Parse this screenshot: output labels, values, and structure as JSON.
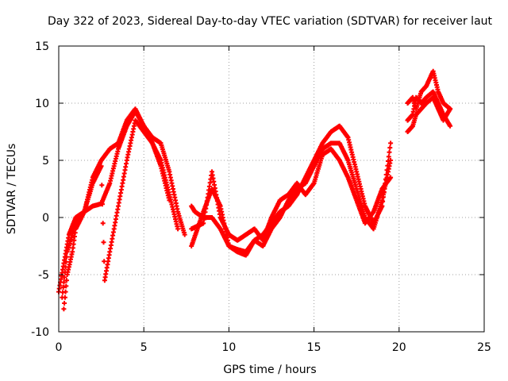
{
  "chart_data": {
    "type": "scatter",
    "title": "Day 322 of 2023, Sidereal Day-to-day VTEC variation (SDTVAR) for receiver laut",
    "xlabel": "GPS time / hours",
    "ylabel": "SDTVAR / TECUs",
    "xlim": [
      0,
      25
    ],
    "ylim": [
      -10,
      15
    ],
    "xticks": [
      "0",
      "5",
      "10",
      "15",
      "20",
      "25"
    ],
    "yticks": [
      "-10",
      "-5",
      "0",
      "5",
      "10",
      "15"
    ],
    "grid": true,
    "marker": "+",
    "color": "#ff0000",
    "series": [
      {
        "name": "trace-1",
        "x": [
          0.0,
          0.3,
          0.6,
          1.0,
          1.5,
          2.0,
          2.5,
          3.0,
          3.5,
          4.0,
          4.5,
          5.0,
          5.5,
          6.0,
          6.5,
          7.0,
          7.4
        ],
        "y": [
          -6.5,
          -4.0,
          -1.5,
          0.0,
          0.5,
          1.0,
          1.2,
          3.0,
          6.0,
          8.0,
          9.3,
          8.0,
          7.0,
          6.5,
          4.0,
          0.5,
          -1.5
        ]
      },
      {
        "name": "trace-2",
        "x": [
          0.3,
          0.5,
          0.8,
          1.0,
          1.5,
          2.0,
          2.5,
          3.0,
          3.5,
          4.0,
          4.5,
          5.0,
          5.5,
          6.0,
          6.5,
          7.0
        ],
        "y": [
          -8.0,
          -5.0,
          -3.0,
          -1.0,
          0.5,
          3.5,
          5.0,
          6.0,
          6.5,
          8.5,
          9.5,
          8.0,
          6.5,
          5.0,
          2.0,
          -1.0
        ]
      },
      {
        "name": "trace-3",
        "x": [
          0.2,
          0.5,
          1.0,
          1.5,
          2.0,
          2.5,
          2.7,
          3.0,
          3.5,
          4.0,
          4.5,
          5.0,
          5.5,
          6.0,
          6.5
        ],
        "y": [
          -7.0,
          -3.0,
          -0.5,
          0.5,
          3.0,
          4.5,
          -5.5,
          -3.0,
          1.0,
          5.0,
          8.5,
          7.5,
          6.5,
          4.5,
          1.5
        ]
      },
      {
        "name": "trace-4",
        "x": [
          7.8,
          8.0,
          8.5,
          9.0,
          9.5,
          10.0,
          10.5,
          11.0,
          11.5,
          12.0,
          12.5,
          13.0,
          13.5,
          14.0,
          14.5,
          15.0,
          15.5,
          16.0,
          16.5,
          17.0,
          17.5,
          18.0,
          18.5,
          19.0,
          19.5
        ],
        "y": [
          1.0,
          0.5,
          0.0,
          0.0,
          -1.0,
          -2.5,
          -2.8,
          -3.0,
          -2.0,
          -1.5,
          -0.5,
          0.5,
          1.0,
          2.0,
          3.5,
          5.0,
          6.5,
          7.5,
          8.0,
          7.0,
          4.0,
          1.0,
          -0.5,
          1.0,
          6.5
        ]
      },
      {
        "name": "trace-5",
        "x": [
          7.8,
          8.5,
          9.0,
          9.5,
          10.0,
          10.5,
          11.0,
          11.5,
          12.0,
          12.5,
          13.0,
          13.5,
          14.0,
          14.5,
          15.0,
          15.5,
          16.0,
          16.5,
          17.0,
          17.5,
          18.0,
          18.5,
          19.0,
          19.5
        ],
        "y": [
          -2.5,
          0.5,
          2.5,
          1.0,
          -2.5,
          -3.0,
          -3.3,
          -2.0,
          -2.5,
          -1.0,
          0.0,
          1.5,
          2.5,
          3.0,
          4.5,
          6.0,
          6.5,
          6.5,
          5.0,
          2.5,
          0.0,
          -1.0,
          1.5,
          5.0
        ]
      },
      {
        "name": "trace-6",
        "x": [
          7.8,
          8.5,
          9.0,
          9.5,
          10.0,
          10.5,
          11.0,
          11.5,
          12.0,
          12.5,
          13.0,
          13.5,
          14.0,
          14.5,
          15.0,
          15.5,
          16.0,
          16.5,
          17.0,
          17.5,
          18.0,
          18.5,
          19.0,
          19.5
        ],
        "y": [
          -1.0,
          -0.5,
          4.0,
          0.0,
          -1.5,
          -2.0,
          -1.5,
          -1.0,
          -2.0,
          0.0,
          1.5,
          2.0,
          3.0,
          2.0,
          3.0,
          5.5,
          6.0,
          5.0,
          3.5,
          1.5,
          -0.5,
          0.5,
          2.5,
          3.5
        ]
      },
      {
        "name": "trace-7",
        "x": [
          20.5,
          20.8,
          21.0,
          21.3,
          21.6,
          22.0,
          22.3,
          22.6,
          23.0
        ],
        "y": [
          8.5,
          9.0,
          10.5,
          10.0,
          10.5,
          11.0,
          10.0,
          9.0,
          8.0
        ]
      },
      {
        "name": "trace-8",
        "x": [
          20.5,
          20.8,
          21.0,
          21.3,
          21.6,
          22.0,
          22.3,
          22.6,
          23.0
        ],
        "y": [
          10.0,
          10.5,
          9.5,
          11.0,
          11.5,
          12.8,
          11.0,
          10.0,
          9.5
        ]
      },
      {
        "name": "trace-9",
        "x": [
          20.5,
          20.8,
          21.0,
          21.3,
          21.6,
          22.0,
          22.3,
          22.6,
          23.0
        ],
        "y": [
          7.5,
          8.0,
          9.0,
          9.5,
          10.0,
          10.5,
          9.5,
          8.5,
          9.5
        ]
      }
    ]
  }
}
